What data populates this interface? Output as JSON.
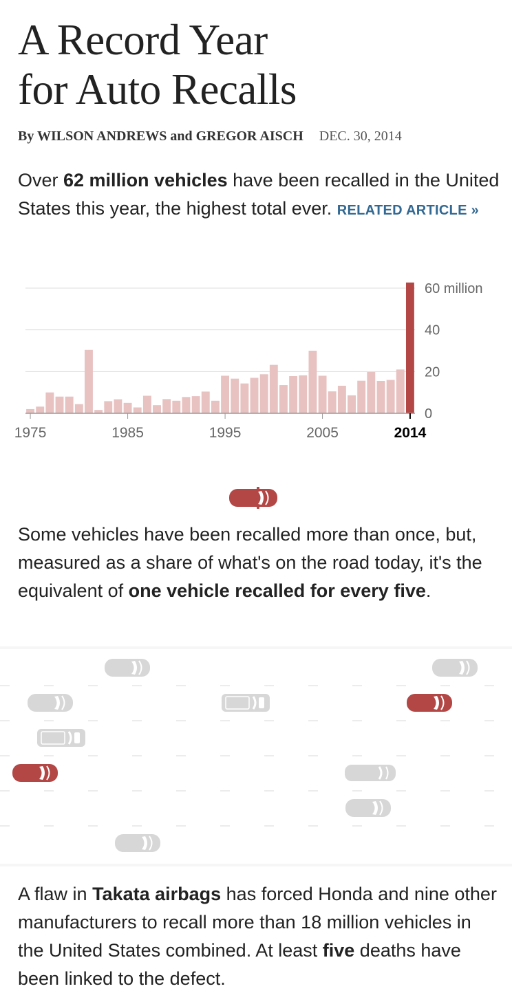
{
  "article": {
    "headline_line1": "A Record Year",
    "headline_line2": "for Auto Recalls",
    "byline_authors": "By WILSON ANDREWS and GREGOR AISCH",
    "byline_date": "DEC. 30, 2014"
  },
  "intro": {
    "text_1": "Over ",
    "bold_1": "62 million vehicles",
    "text_2": " have been recalled in the United States this year, the highest total ever. ",
    "related_link": "RELATED ARTICLE »"
  },
  "share": {
    "text_1": "Some vehicles have been recalled more than once, but, measured as a share of what's on the road today, it's the equivalent of ",
    "bold_1": "one vehicle recalled for every five",
    "text_2": "."
  },
  "takata": {
    "text_1": "A flaw in ",
    "bold_1": "Takata airbags",
    "text_2": " has forced Honda and nine other manufacturers to recall more than 18 million vehicles in the United States combined. At least ",
    "bold_2": "five",
    "text_3": " deaths have been linked to the defect."
  },
  "colors": {
    "bar_normal": "#e8c1c1",
    "bar_highlight": "#b34745",
    "car_gray": "#d7d7d7",
    "car_red": "#b34745",
    "link": "#326891"
  },
  "chart_data": {
    "type": "bar",
    "title": "",
    "xlabel": "",
    "ylabel": "",
    "unit_label": "60 million",
    "ylim": [
      0,
      60
    ],
    "y_ticks": [
      0,
      20,
      40,
      60
    ],
    "y_tick_labels": [
      "0",
      "20",
      "40",
      "60 million"
    ],
    "x_tick_labels": [
      "1975",
      "1985",
      "1995",
      "2005",
      "2014"
    ],
    "highlight_year": 2014,
    "grid": true,
    "categories": [
      1975,
      1976,
      1977,
      1978,
      1979,
      1980,
      1981,
      1982,
      1983,
      1984,
      1985,
      1986,
      1987,
      1988,
      1989,
      1990,
      1991,
      1992,
      1993,
      1994,
      1995,
      1996,
      1997,
      1998,
      1999,
      2000,
      2001,
      2002,
      2003,
      2004,
      2005,
      2006,
      2007,
      2008,
      2009,
      2010,
      2011,
      2012,
      2013,
      2014
    ],
    "values": [
      2,
      3.2,
      10,
      8,
      8,
      4.4,
      30.4,
      1.6,
      5.8,
      6.7,
      5,
      2.8,
      8.4,
      3.9,
      6.8,
      6,
      7.8,
      8.2,
      10.4,
      6,
      18,
      16.6,
      14.3,
      17,
      18.7,
      23.2,
      13.5,
      17.8,
      18.2,
      30,
      18,
      10.5,
      13.2,
      8.6,
      15.6,
      19.8,
      15.5,
      16,
      21,
      62.7
    ]
  },
  "road_cars": [
    {
      "lane": 0,
      "pos": 0.25,
      "color": "gray",
      "type": "sedan"
    },
    {
      "lane": 0,
      "pos": 0.89,
      "color": "gray",
      "type": "sedan"
    },
    {
      "lane": 1,
      "pos": 0.1,
      "color": "gray",
      "type": "sedan"
    },
    {
      "lane": 1,
      "pos": 0.48,
      "color": "gray",
      "type": "truck"
    },
    {
      "lane": 1,
      "pos": 0.84,
      "color": "red",
      "type": "sedan"
    },
    {
      "lane": 2,
      "pos": 0.12,
      "color": "gray",
      "type": "truck"
    },
    {
      "lane": 3,
      "pos": 0.07,
      "color": "red",
      "type": "sedan"
    },
    {
      "lane": 3,
      "pos": 0.72,
      "color": "gray",
      "type": "wagon"
    },
    {
      "lane": 4,
      "pos": 0.72,
      "color": "gray",
      "type": "sedan"
    },
    {
      "lane": 5,
      "pos": 0.27,
      "color": "gray",
      "type": "sedan"
    }
  ]
}
